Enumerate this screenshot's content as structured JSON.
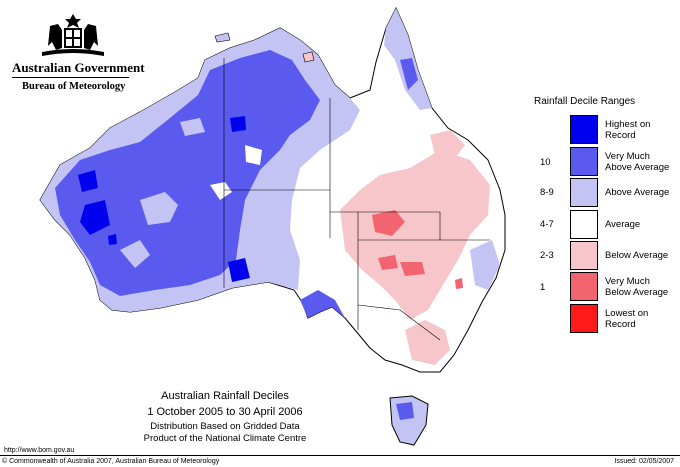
{
  "header": {
    "government": "Australian Government",
    "bureau": "Bureau of Meteorology"
  },
  "legend": {
    "title": "Rainfall Decile Ranges",
    "items": [
      {
        "label": "Highest on\nRecord",
        "range": "",
        "color": "#0000ee"
      },
      {
        "label": "Very Much\nAbove Average",
        "range": "10",
        "color": "#5a5aee"
      },
      {
        "label": "Above Average",
        "range": "8-9",
        "color": "#c4c4f4"
      },
      {
        "label": "Average",
        "range": "4-7",
        "color": "#ffffff"
      },
      {
        "label": "Below Average",
        "range": "2-3",
        "color": "#f7c6cb"
      },
      {
        "label": "Very Much\nBelow Average",
        "range": "1",
        "color": "#f26470"
      },
      {
        "label": "Lowest on\nRecord",
        "range": "",
        "color": "#ff1a1a"
      }
    ]
  },
  "caption": {
    "title": "Australian Rainfall Deciles",
    "period": "1 October 2005 to 30 April 2006",
    "basis": "Distribution Based on Gridded Data",
    "product": "Product of the National Climate Centre"
  },
  "footer": {
    "url": "http://www.bom.gov.au",
    "copyright": "© Commonwealth of Australia 2007, Australian Bureau of Meteorology",
    "issued": "Issued: 02/05/2007"
  },
  "colors": {
    "highest": "#0000ee",
    "very_much_above": "#5a5aee",
    "above": "#c4c4f4",
    "average": "#ffffff",
    "below": "#f7c6cb",
    "very_much_below": "#f26470",
    "lowest": "#ff1a1a"
  }
}
